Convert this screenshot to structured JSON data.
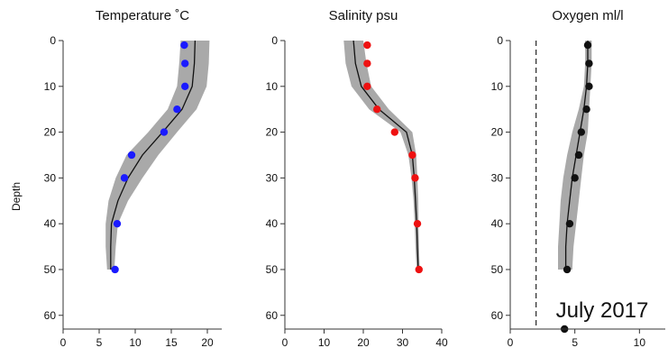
{
  "figure": {
    "ylabel": "Depth",
    "annotation": "July 2017"
  },
  "chart_data": [
    {
      "type": "line",
      "title": "Temperature ˚C",
      "xlim": [
        0,
        22
      ],
      "ylim": [
        0,
        63
      ],
      "y_inverted": true,
      "xticks": [
        0,
        5,
        10,
        15,
        20
      ],
      "yticks": [
        0,
        10,
        20,
        30,
        40,
        50,
        60
      ],
      "band_color": "#a9a9a9",
      "point_color": "#1a1aff",
      "line_color": "#111111",
      "mean_line": {
        "depth": [
          0,
          5,
          10,
          15,
          20,
          25,
          30,
          35,
          40,
          45,
          50
        ],
        "x": [
          18.3,
          18.2,
          17.9,
          16.5,
          13.8,
          11.0,
          9.0,
          7.6,
          6.7,
          6.6,
          6.6
        ]
      },
      "band_lower": [
        16.3,
        16.1,
        15.8,
        14.5,
        11.8,
        8.8,
        7.3,
        6.3,
        5.9,
        5.9,
        6.1
      ],
      "band_upper": [
        20.3,
        20.2,
        19.9,
        18.5,
        15.8,
        13.2,
        11.0,
        9.0,
        7.6,
        7.3,
        7.1
      ],
      "points": {
        "depth": [
          1,
          5,
          10,
          15,
          20,
          25,
          30,
          40,
          50
        ],
        "x": [
          16.8,
          16.9,
          16.9,
          15.8,
          14.0,
          9.5,
          8.5,
          7.5,
          7.2
        ]
      }
    },
    {
      "type": "line",
      "title": "Salinity psu",
      "xlim": [
        0,
        40
      ],
      "ylim": [
        0,
        63
      ],
      "y_inverted": true,
      "xticks": [
        0,
        10,
        20,
        30,
        40
      ],
      "yticks": [
        0,
        10,
        20,
        30,
        40,
        50,
        60
      ],
      "band_color": "#a9a9a9",
      "point_color": "#ee1111",
      "line_color": "#111111",
      "mean_line": {
        "depth": [
          0,
          5,
          10,
          15,
          20,
          25,
          30,
          35,
          40,
          45,
          50
        ],
        "x": [
          17.5,
          18.0,
          19.5,
          24.0,
          31.0,
          32.5,
          33.0,
          33.3,
          33.6,
          33.8,
          34.0
        ]
      },
      "band_lower": [
        15.0,
        15.5,
        17.0,
        21.5,
        29.5,
        31.5,
        32.3,
        32.8,
        33.1,
        33.3,
        33.6
      ],
      "band_upper": [
        20.0,
        20.8,
        22.0,
        26.5,
        32.5,
        33.5,
        33.8,
        34.0,
        34.1,
        34.2,
        34.4
      ],
      "points": {
        "depth": [
          1,
          5,
          10,
          15,
          20,
          25,
          30,
          40,
          50
        ],
        "x": [
          21.0,
          21.0,
          21.0,
          23.5,
          28.0,
          32.5,
          33.2,
          33.8,
          34.2
        ]
      }
    },
    {
      "type": "line",
      "title": "Oxygen ml/l",
      "xlim": [
        0,
        12
      ],
      "ylim": [
        0,
        63
      ],
      "y_inverted": true,
      "xticks": [
        0,
        5,
        10
      ],
      "yticks": [
        0,
        10,
        20,
        30,
        40,
        50,
        60
      ],
      "band_color": "#a9a9a9",
      "point_color": "#111111",
      "line_color": "#111111",
      "reference_line_x": 2,
      "mean_line": {
        "depth": [
          0,
          5,
          10,
          15,
          20,
          25,
          30,
          35,
          40,
          45,
          50
        ],
        "x": [
          6.0,
          6.0,
          5.9,
          5.7,
          5.4,
          5.1,
          4.8,
          4.6,
          4.4,
          4.3,
          4.3
        ]
      },
      "band_lower": [
        5.8,
        5.8,
        5.7,
        5.3,
        4.8,
        4.4,
        4.1,
        3.9,
        3.8,
        3.7,
        3.7
      ],
      "band_upper": [
        6.3,
        6.3,
        6.2,
        6.1,
        6.0,
        5.7,
        5.5,
        5.3,
        5.1,
        4.9,
        4.8
      ],
      "points": {
        "depth": [
          1,
          5,
          10,
          15,
          20,
          25,
          30,
          40,
          50,
          63
        ],
        "x": [
          6.0,
          6.1,
          6.1,
          5.9,
          5.5,
          5.3,
          5.0,
          4.6,
          4.4,
          4.2
        ]
      }
    }
  ]
}
